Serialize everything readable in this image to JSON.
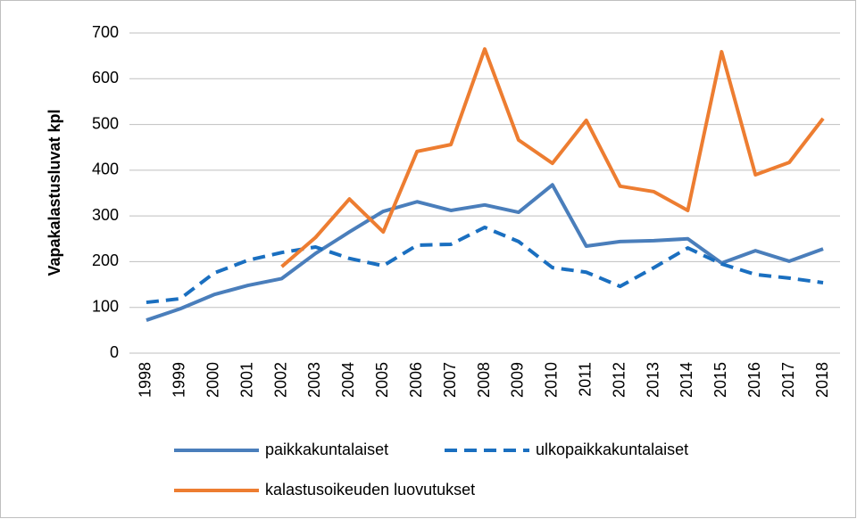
{
  "chart_data": {
    "type": "line",
    "y_label": "Vapakalastusluvat kpl",
    "categories": [
      "1998",
      "1999",
      "2000",
      "2001",
      "2002",
      "2003",
      "2004",
      "2005",
      "2006",
      "2007",
      "2008",
      "2009",
      "2010",
      "2011",
      "2012",
      "2013",
      "2014",
      "2015",
      "2016",
      "2017",
      "2018"
    ],
    "series": [
      {
        "name": "paikkakuntalaiset",
        "color": "#4a7ebb",
        "dash": false,
        "values": [
          72,
          97,
          128,
          148,
          163,
          218,
          265,
          310,
          331,
          312,
          324,
          308,
          368,
          234,
          244,
          246,
          250,
          197,
          224,
          201,
          228
        ]
      },
      {
        "name": "ulkopaikkakuntalaiset",
        "color": "#1a6fc0",
        "dash": true,
        "values": [
          111,
          119,
          175,
          203,
          220,
          232,
          207,
          191,
          236,
          238,
          275,
          244,
          187,
          177,
          146,
          187,
          230,
          195,
          172,
          164,
          154
        ]
      },
      {
        "name": "kalastusoikeuden luovutukset",
        "color": "#ed7d31",
        "dash": false,
        "values": [
          null,
          null,
          null,
          null,
          189,
          253,
          337,
          265,
          441,
          456,
          665,
          466,
          415,
          509,
          365,
          353,
          312,
          659,
          390,
          417,
          513
        ]
      }
    ],
    "ylim": [
      0,
      700
    ],
    "yticks": [
      0,
      100,
      200,
      300,
      400,
      500,
      600,
      700
    ],
    "grid": true
  }
}
